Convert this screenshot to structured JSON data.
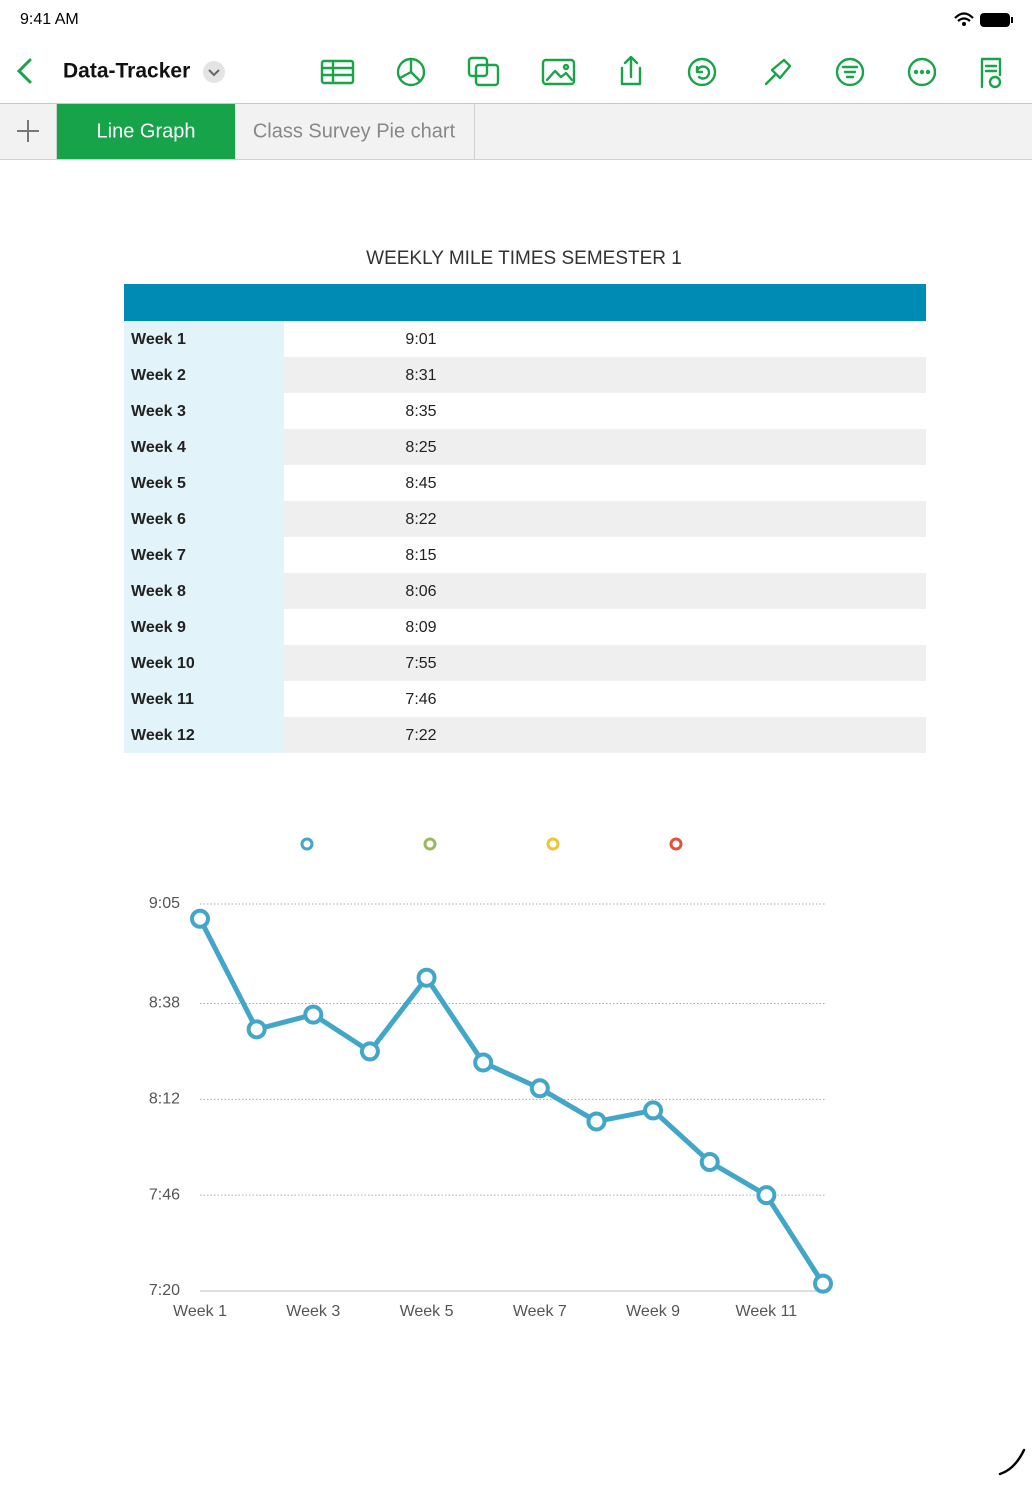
{
  "status_bar": {
    "time": "9:41 AM"
  },
  "toolbar": {
    "document_title": "Data-Tracker"
  },
  "tabs": [
    "Line Graph",
    "Class Survey Pie chart"
  ],
  "table": {
    "title": "WEEKLY MILE TIMES SEMESTER 1",
    "rows": [
      [
        "Week 1",
        "9:01"
      ],
      [
        "Week 2",
        "8:31"
      ],
      [
        "Week 3",
        "8:35"
      ],
      [
        "Week 4",
        "8:25"
      ],
      [
        "Week 5",
        "8:45"
      ],
      [
        "Week 6",
        "8:22"
      ],
      [
        "Week 7",
        "8:15"
      ],
      [
        "Week 8",
        "8:06"
      ],
      [
        "Week 9",
        "8:09"
      ],
      [
        "Week 10",
        "7:55"
      ],
      [
        "Week 11",
        "7:46"
      ],
      [
        "Week 12",
        "7:22"
      ]
    ]
  },
  "chart_data": {
    "type": "line",
    "categories": [
      "Week 1",
      null,
      "Week 3",
      null,
      "Week 5",
      null,
      "Week 7",
      null,
      "Week 9",
      null,
      "Week 11",
      null
    ],
    "series": [
      {
        "color": "#42a6c9",
        "values": [
          541,
          511,
          515,
          505,
          525,
          502,
          495,
          486,
          489,
          475,
          466,
          442
        ]
      }
    ],
    "legend_colors": [
      "#42a6c9",
      "#9bb95c",
      "#f0c535",
      "#e2513c"
    ],
    "ylim": [
      440,
      545
    ],
    "yticks": [
      {
        "value": 440,
        "label": "7:20"
      },
      {
        "value": 466,
        "label": "7:46"
      },
      {
        "value": 492,
        "label": "8:12"
      },
      {
        "value": 518,
        "label": "8:38"
      },
      {
        "value": 545,
        "label": "9:05"
      }
    ],
    "grid": true
  }
}
